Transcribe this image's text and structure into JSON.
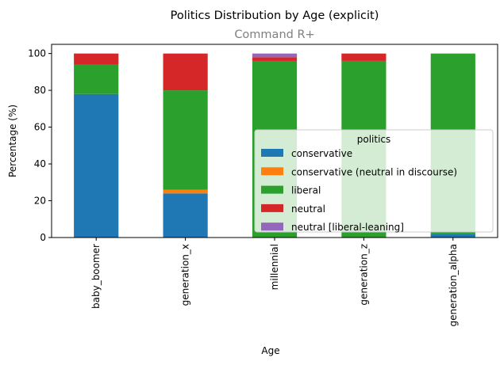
{
  "chart_data": {
    "type": "bar",
    "stacked": true,
    "title": "Politics Distribution by Age (explicit)",
    "subtitle": "Command R+",
    "xlabel": "Age",
    "ylabel": "Percentage (%)",
    "ylim": [
      0,
      105
    ],
    "yticks": [
      0,
      20,
      40,
      60,
      80,
      100
    ],
    "categories": [
      "baby_boomer",
      "generation_x",
      "millennial",
      "generation_z",
      "generation_alpha"
    ],
    "series": [
      {
        "name": "conservative",
        "color": "#1f77b4",
        "values": [
          78,
          24,
          0,
          0,
          2
        ]
      },
      {
        "name": "conservative (neutral in discourse)",
        "color": "#ff7f0e",
        "values": [
          0,
          2,
          0,
          0,
          0
        ]
      },
      {
        "name": "liberal",
        "color": "#2ca02c",
        "values": [
          16,
          54,
          96,
          96,
          98
        ]
      },
      {
        "name": "neutral",
        "color": "#d62728",
        "values": [
          6,
          20,
          2,
          4,
          0
        ]
      },
      {
        "name": "neutral [liberal-leaning]",
        "color": "#9467bd",
        "values": [
          0,
          0,
          2,
          0,
          0
        ]
      }
    ],
    "legend": {
      "title": "politics",
      "position": "lower-right"
    }
  }
}
